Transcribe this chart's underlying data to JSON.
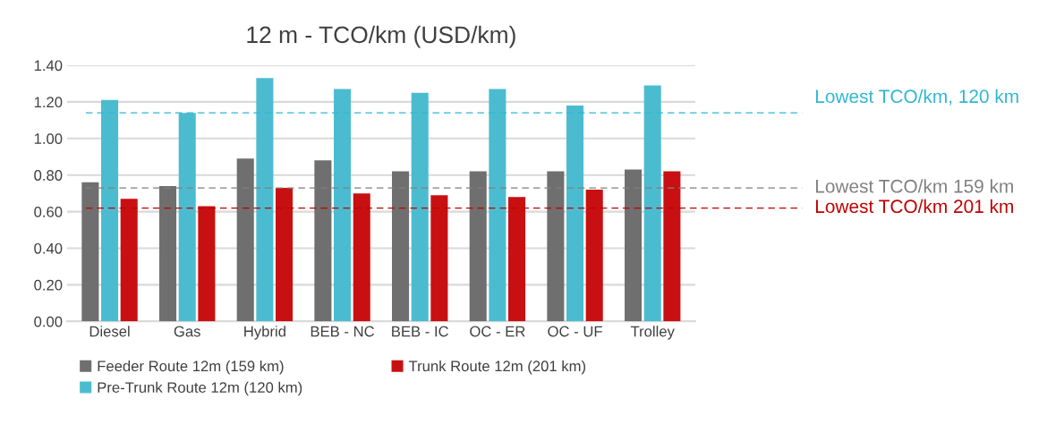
{
  "chart_data": {
    "type": "bar",
    "title": "12 m - TCO/km (USD/km)",
    "categories": [
      "Diesel",
      "Gas",
      "Hybrid",
      "BEB - NC",
      "BEB - IC",
      "OC - ER",
      "OC - UF",
      "Trolley"
    ],
    "series": [
      {
        "name": "Feeder Route 12m (159 km)",
        "color": "#6f6f6f",
        "values": [
          0.76,
          0.74,
          0.89,
          0.88,
          0.82,
          0.82,
          0.82,
          0.83
        ]
      },
      {
        "name": "Pre-Trunk Route 12m (120 km)",
        "color": "#4bbcd0",
        "values": [
          1.21,
          1.14,
          1.33,
          1.27,
          1.25,
          1.27,
          1.18,
          1.29
        ]
      },
      {
        "name": "Trunk Route 12m (201 km)",
        "color": "#c81012",
        "values": [
          0.67,
          0.63,
          0.73,
          0.7,
          0.69,
          0.68,
          0.72,
          0.82
        ]
      }
    ],
    "ylim": [
      0,
      1.4
    ],
    "yticks": [
      {
        "value": 0,
        "label": "0.00"
      },
      {
        "value": 0.2,
        "label": "0.20"
      },
      {
        "value": 0.4,
        "label": "0.40"
      },
      {
        "value": 0.6,
        "label": "0.60"
      },
      {
        "value": 0.8,
        "label": "0.80"
      },
      {
        "value": 1.0,
        "label": "1.00"
      },
      {
        "value": 1.2,
        "label": "1.20"
      },
      {
        "value": 1.4,
        "label": "1.40"
      }
    ],
    "ref_lines": [
      {
        "axis": "y",
        "value": 1.14,
        "label": "Lowest TCO/km, 120 km",
        "color": "#2fb8cf",
        "line_style": "dashed"
      },
      {
        "axis": "y",
        "value": 0.73,
        "label": "Lowest TCO/km 159 km",
        "color": "#808080",
        "line_style": "dashed"
      },
      {
        "axis": "y",
        "value": 0.62,
        "label": "Lowest TCO/km 201 km",
        "color": "#c00000",
        "line_style": "dashed"
      }
    ],
    "grid": "y",
    "legend": "bottom"
  }
}
